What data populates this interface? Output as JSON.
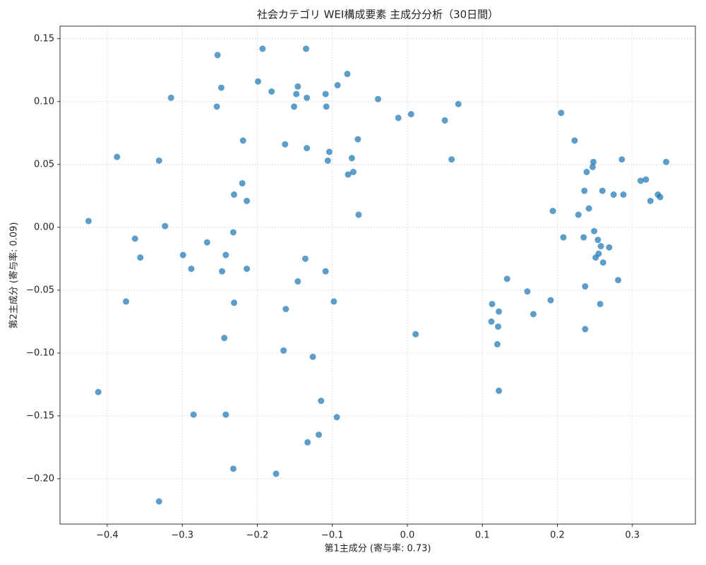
{
  "chart_data": {
    "type": "scatter",
    "title": "社会カテゴリ WEI構成要素 主成分分析（30日間）",
    "x_label": "第1主成分 (寄与率: 0.73)",
    "y_label": "第2主成分 (寄与率: 0.09)",
    "color": "#1f77b4",
    "grid": true,
    "xlim": [
      -0.463,
      0.384
    ],
    "ylim": [
      -0.236,
      0.16
    ],
    "xticks": [
      {
        "value": -0.4,
        "label": "−0.4"
      },
      {
        "value": -0.3,
        "label": "−0.3"
      },
      {
        "value": -0.2,
        "label": "−0.2"
      },
      {
        "value": -0.1,
        "label": "−0.1"
      },
      {
        "value": 0,
        "label": "0.0"
      },
      {
        "value": 0.1,
        "label": "0.1"
      },
      {
        "value": 0.2,
        "label": "0.2"
      },
      {
        "value": 0.3,
        "label": "0.3"
      }
    ],
    "yticks": [
      {
        "value": -0.2,
        "label": "−0.20"
      },
      {
        "value": -0.15,
        "label": "−0.15"
      },
      {
        "value": -0.1,
        "label": "−0.10"
      },
      {
        "value": -0.05,
        "label": "−0.05"
      },
      {
        "value": 0,
        "label": "0.00"
      },
      {
        "value": 0.05,
        "label": "0.05"
      },
      {
        "value": 0.1,
        "label": "0.10"
      },
      {
        "value": 0.15,
        "label": "0.15"
      }
    ],
    "x": [
      -0.425,
      -0.387,
      -0.412,
      -0.375,
      -0.363,
      -0.356,
      -0.331,
      -0.331,
      -0.323,
      -0.315,
      -0.299,
      -0.288,
      -0.285,
      -0.267,
      -0.253,
      -0.254,
      -0.248,
      -0.247,
      -0.244,
      -0.242,
      -0.242,
      -0.232,
      -0.232,
      -0.231,
      -0.231,
      -0.22,
      -0.219,
      -0.214,
      -0.214,
      -0.199,
      -0.193,
      -0.181,
      -0.175,
      -0.165,
      -0.163,
      -0.162,
      -0.151,
      -0.148,
      -0.146,
      -0.146,
      -0.136,
      -0.135,
      -0.134,
      -0.134,
      -0.133,
      -0.126,
      -0.118,
      -0.115,
      -0.109,
      -0.109,
      -0.108,
      -0.106,
      -0.104,
      -0.098,
      -0.094,
      -0.093,
      -0.08,
      -0.079,
      -0.074,
      -0.072,
      -0.066,
      -0.065,
      -0.039,
      -0.012,
      0.005,
      0.011,
      0.05,
      0.059,
      0.068,
      0.113,
      0.112,
      0.12,
      0.121,
      0.122,
      0.122,
      0.133,
      0.16,
      0.168,
      0.191,
      0.194,
      0.205,
      0.208,
      0.223,
      0.228,
      0.235,
      0.236,
      0.237,
      0.237,
      0.239,
      0.242,
      0.247,
      0.248,
      0.249,
      0.251,
      0.254,
      0.255,
      0.257,
      0.258,
      0.26,
      0.261,
      0.269,
      0.275,
      0.281,
      0.286,
      0.288,
      0.311,
      0.318,
      0.324,
      0.334,
      0.337,
      0.345
    ],
    "values": [
      0.005,
      0.056,
      -0.131,
      -0.059,
      -0.009,
      -0.024,
      0.053,
      -0.218,
      0.001,
      0.103,
      -0.022,
      -0.033,
      -0.149,
      -0.012,
      0.137,
      0.096,
      0.111,
      -0.035,
      -0.088,
      -0.022,
      -0.149,
      -0.192,
      -0.004,
      0.026,
      -0.06,
      0.035,
      0.069,
      0.021,
      -0.033,
      0.116,
      0.142,
      0.108,
      -0.196,
      -0.098,
      0.066,
      -0.065,
      0.096,
      0.106,
      0.112,
      -0.043,
      -0.025,
      0.142,
      0.103,
      0.063,
      -0.171,
      -0.103,
      -0.165,
      -0.138,
      0.106,
      -0.035,
      0.096,
      0.053,
      0.06,
      -0.059,
      -0.151,
      0.113,
      0.122,
      0.042,
      0.055,
      0.044,
      0.07,
      0.01,
      0.102,
      0.087,
      0.09,
      -0.085,
      0.085,
      0.054,
      0.098,
      -0.061,
      -0.075,
      -0.093,
      -0.079,
      -0.067,
      -0.13,
      -0.041,
      -0.051,
      -0.069,
      -0.058,
      0.013,
      0.091,
      -0.008,
      0.069,
      0.01,
      -0.008,
      0.029,
      -0.081,
      -0.047,
      0.044,
      0.015,
      0.048,
      0.052,
      -0.003,
      -0.024,
      -0.01,
      -0.021,
      -0.061,
      -0.015,
      0.029,
      -0.028,
      -0.016,
      0.026,
      -0.042,
      0.054,
      0.026,
      0.037,
      0.038,
      0.021,
      0.026,
      0.024,
      0.052
    ]
  }
}
